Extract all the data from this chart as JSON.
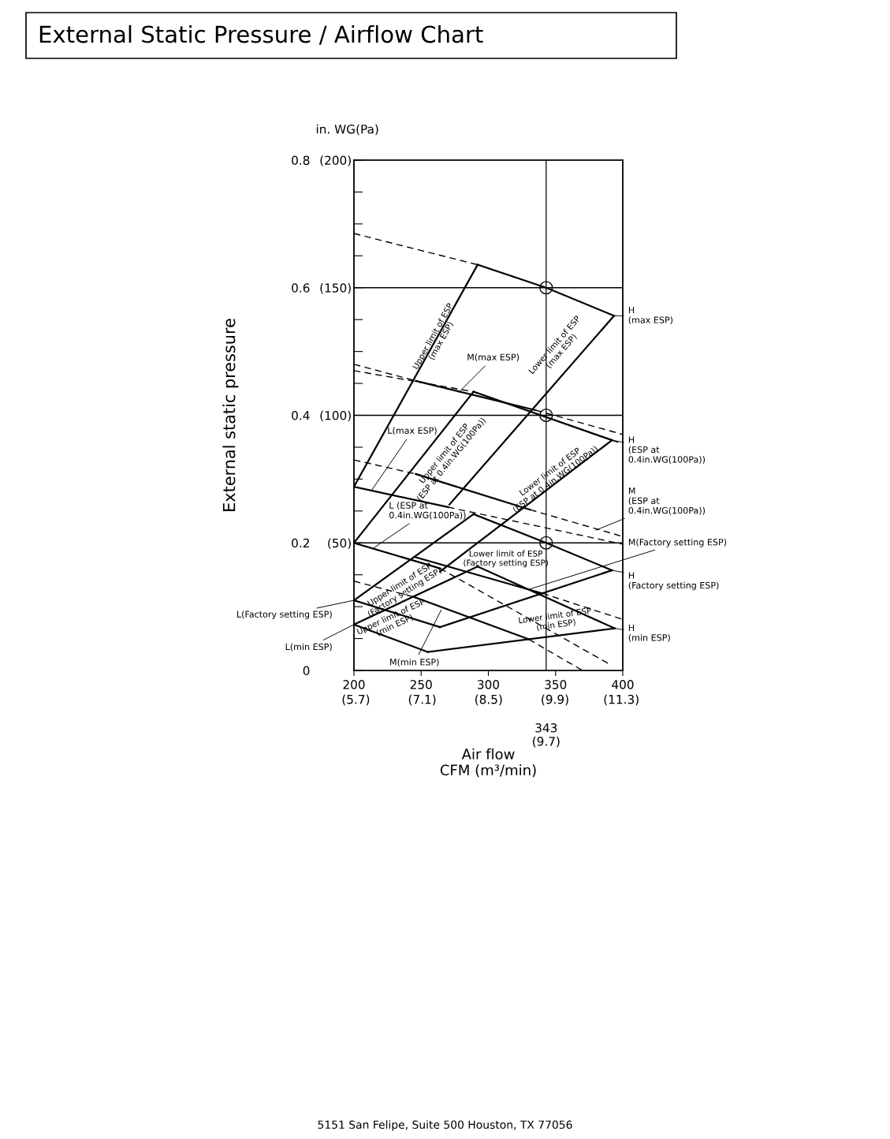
{
  "chart_data": {
    "type": "line",
    "title": "External Static Pressure / Airflow Chart",
    "xlabel": "Air flow\nCFM (m³/min)",
    "ylabel": "External static pressure",
    "xlim": [
      200,
      400
    ],
    "ylim": [
      0,
      0.8
    ],
    "xticks": [
      200,
      250,
      300,
      350,
      400
    ],
    "x2lim": [
      5.66,
      11.33
    ],
    "x2ticks": [
      {
        "value": 5.7,
        "label": "(5.7)"
      },
      {
        "value": 7.1,
        "label": "(7.1)"
      },
      {
        "value": 8.5,
        "label": "(8.5)"
      },
      {
        "value": 9.9,
        "label": "(9.9)"
      },
      {
        "value": 11.3,
        "label": "(11.3)"
      }
    ],
    "yticks": [
      0,
      {
        "value": 0.05,
        "label": null
      },
      {
        "value": 0.1,
        "label": null
      },
      {
        "value": 0.15,
        "label": null
      },
      0.2,
      {
        "value": 0.25,
        "label": null
      },
      {
        "value": 0.3,
        "label": null
      },
      {
        "value": 0.35,
        "label": null
      },
      0.4,
      {
        "value": 0.45,
        "label": null
      },
      {
        "value": 0.5,
        "label": null
      },
      {
        "value": 0.55,
        "label": null
      },
      0.6,
      {
        "value": 0.65,
        "label": null
      },
      {
        "value": 0.7,
        "label": null
      },
      {
        "value": 0.75,
        "label": null
      },
      0.8
    ],
    "y2lim": [
      0,
      200
    ],
    "y2ticks": [
      {
        "value": 50,
        "label": "(50)"
      },
      {
        "value": 100,
        "label": "(100)"
      },
      {
        "value": 150,
        "label": "(150)"
      },
      {
        "value": 200,
        "label": "(200)"
      }
    ],
    "ref_lines": [
      {
        "axis": "x",
        "value": 343,
        "label": "343\n(9.7)",
        "color": "#000000"
      },
      {
        "axis": "y",
        "value": 0.2,
        "label": null,
        "color": "#000000"
      },
      {
        "axis": "y",
        "value": 0.4,
        "label": null,
        "color": "#000000"
      },
      {
        "axis": "y",
        "value": 0.6,
        "label": null,
        "color": "#000000"
      }
    ],
    "grid": false,
    "series": [
      {
        "color": "#000000",
        "x": [
          292,
          343,
          393.5
        ],
        "values": [
          0.636,
          0.6,
          0.556
        ]
      },
      {
        "color": "#000000",
        "x": [
          246,
          335
        ],
        "values": [
          0.454,
          0.408
        ]
      },
      {
        "color": "#000000",
        "x": [
          200,
          270
        ],
        "values": [
          0.288,
          0.256
        ]
      },
      {
        "color": "#000000",
        "x": [
          289,
          392
        ],
        "values": [
          0.437,
          0.361
        ]
      },
      {
        "color": "#000000",
        "x": [
          246,
          331
        ],
        "values": [
          0.308,
          0.252
        ]
      },
      {
        "color": "#000000",
        "x": [
          200,
          264
        ],
        "values": [
          0.2,
          0.16
        ]
      },
      {
        "color": "#000000",
        "x": [
          289,
          343,
          392
        ],
        "values": [
          0.245,
          0.2,
          0.157
        ]
      },
      {
        "color": "#000000",
        "x": [
          245,
          340
        ],
        "values": [
          0.178,
          0.121
        ]
      },
      {
        "color": "#000000",
        "x": [
          200,
          264
        ],
        "values": [
          0.11,
          0.068
        ]
      },
      {
        "color": "#000000",
        "x": [
          292,
          394
        ],
        "values": [
          0.163,
          0.066
        ]
      },
      {
        "color": "#000000",
        "x": [
          245,
          330
        ],
        "values": [
          0.115,
          0.049
        ]
      },
      {
        "color": "#000000",
        "x": [
          200,
          255
        ],
        "values": [
          0.072,
          0.029
        ]
      },
      {
        "color": "#000000",
        "x": [
          200,
          292
        ],
        "values": [
          0.288,
          0.636
        ]
      },
      {
        "color": "#000000",
        "x": [
          271,
          393.5
        ],
        "values": [
          0.26,
          0.556
        ]
      },
      {
        "color": "#000000",
        "x": [
          200,
          289
        ],
        "values": [
          0.2,
          0.437
        ]
      },
      {
        "color": "#000000",
        "x": [
          264,
          392
        ],
        "values": [
          0.155,
          0.361
        ]
      },
      {
        "color": "#000000",
        "x": [
          200,
          289
        ],
        "values": [
          0.11,
          0.245
        ]
      },
      {
        "color": "#000000",
        "x": [
          264,
          392
        ],
        "values": [
          0.068,
          0.157
        ]
      },
      {
        "color": "#000000",
        "x": [
          200,
          292
        ],
        "values": [
          0.072,
          0.163
        ]
      },
      {
        "color": "#000000",
        "x": [
          255,
          394
        ],
        "values": [
          0.029,
          0.066
        ]
      },
      {
        "color": "#000000",
        "line_style": "dashed",
        "x": [
          200,
          292
        ],
        "values": [
          0.685,
          0.636
        ]
      },
      {
        "color": "#000000",
        "line_style": "dashed",
        "x": [
          200,
          246
        ],
        "values": [
          0.48,
          0.454
        ]
      },
      {
        "color": "#000000",
        "line_style": "dashed",
        "x": [
          335,
          400
        ],
        "values": [
          0.408,
          0.37
        ]
      },
      {
        "color": "#000000",
        "line_style": "dashed",
        "x": [
          200,
          289
        ],
        "values": [
          0.47,
          0.437
        ]
      },
      {
        "color": "#000000",
        "line_style": "dashed",
        "x": [
          392,
          400
        ],
        "values": [
          0.361,
          0.355
        ]
      },
      {
        "color": "#000000",
        "line_style": "dashed",
        "x": [
          270,
          400
        ],
        "values": [
          0.256,
          0.198
        ]
      },
      {
        "color": "#000000",
        "line_style": "dashed",
        "x": [
          200,
          246
        ],
        "values": [
          0.33,
          0.308
        ]
      },
      {
        "color": "#000000",
        "line_style": "dashed",
        "x": [
          331,
          400
        ],
        "values": [
          0.252,
          0.21
        ]
      },
      {
        "color": "#000000",
        "line_style": "dashed",
        "x": [
          264,
          390
        ],
        "values": [
          0.16,
          0.01
        ]
      },
      {
        "color": "#000000",
        "line_style": "dashed",
        "x": [
          340,
          400
        ],
        "values": [
          0.121,
          0.08
        ]
      },
      {
        "color": "#000000",
        "line_style": "dashed",
        "x": [
          330,
          370
        ],
        "values": [
          0.049,
          0.0
        ]
      },
      {
        "color": "#000000",
        "line_style": "dashed",
        "x": [
          200,
          245
        ],
        "values": [
          0.14,
          0.115
        ]
      },
      {
        "type": "scatter",
        "marker": "circle",
        "color": "#000000",
        "x": [
          343,
          343,
          343
        ],
        "values": [
          0.6,
          0.4,
          0.2
        ]
      }
    ],
    "annotations": [
      "in. WG(Pa)",
      {
        "text": "H\n(max ESP)",
        "x": 393.5,
        "y": 0.556
      },
      {
        "text": "H\n(ESP at\n0.4in.WG(100Pa))",
        "x": 392,
        "y": 0.361
      },
      {
        "text": "M\n(ESP at\n0.4in.WG(100Pa))",
        "x": 380,
        "y": 0.22
      },
      {
        "text": "M(Factory setting ESP)",
        "x": 330,
        "y": 0.127
      },
      {
        "text": "H\n(Factory setting ESP)",
        "x": 392,
        "y": 0.157
      },
      {
        "text": "H\n(min ESP)",
        "x": 394,
        "y": 0.066
      },
      {
        "text": "L(Factory setting ESP)",
        "x": 200,
        "y": 0.11
      },
      {
        "text": "L(min ESP)",
        "x": 200,
        "y": 0.072
      },
      {
        "text": "M(max ESP)",
        "x": 278,
        "y": 0.436
      },
      {
        "text": "L(max ESP)",
        "x": 213,
        "y": 0.282
      },
      {
        "text": "L (ESP at\n0.4in.WG(100Pa))",
        "x": 214,
        "y": 0.191
      },
      {
        "text": "M(min ESP)",
        "x": 265,
        "y": 0.095
      },
      "Upper limit of ESP\n(max ESP)",
      "Lower limit of ESP\n(max ESP)",
      "Upper limit of ESP\n(ESP at 0.4in.WG(100Pa))",
      "Lower limit of ESP\n(ESP at 0.4in.WG(100Pa))",
      "Upper limit of ESP\n(Factory setting ESP)",
      "Lower limit of ESP\n(Factory setting ESP)",
      "Upper limit of ESP\n(min ESP)",
      "Lower limit of ESP\n(min ESP)",
      "5151 San Felipe, Suite 500 Houston, TX 77056"
    ]
  }
}
